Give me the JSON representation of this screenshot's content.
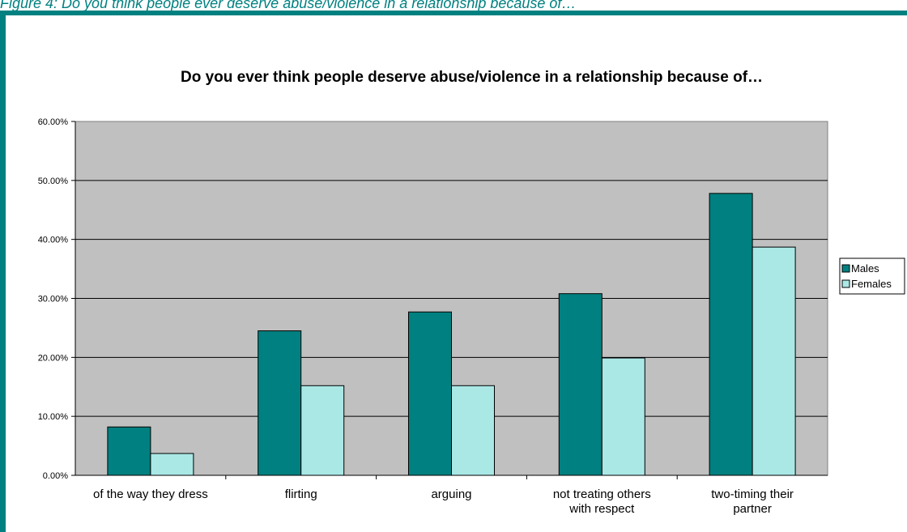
{
  "figure_caption": "Figure 4: Do you think people ever deserve abuse/violence in a relationship because of…",
  "colors": {
    "frame": "#008080",
    "plot_background": "#C0C0C0",
    "males": "#008080",
    "females": "#AAE8E6"
  },
  "chart_data": {
    "type": "bar",
    "title": "Do you ever think people deserve abuse/violence in a relationship because of…",
    "xlabel": "",
    "ylabel": "",
    "ylim": [
      0,
      0.6
    ],
    "y_ticks": [
      0,
      0.1,
      0.2,
      0.3,
      0.4,
      0.5,
      0.6
    ],
    "y_tick_labels": [
      "0.00%",
      "10.00%",
      "20.00%",
      "30.00%",
      "40.00%",
      "50.00%",
      "60.00%"
    ],
    "categories": [
      [
        "of the way they dress"
      ],
      [
        "flirting"
      ],
      [
        "arguing"
      ],
      [
        "not treating others",
        "with respect"
      ],
      [
        "two-timing their",
        "partner"
      ]
    ],
    "series": [
      {
        "name": "Males",
        "values": [
          0.082,
          0.245,
          0.277,
          0.308,
          0.478
        ]
      },
      {
        "name": "Females",
        "values": [
          0.037,
          0.152,
          0.152,
          0.199,
          0.387
        ]
      }
    ],
    "grid": true,
    "legend": "right"
  }
}
